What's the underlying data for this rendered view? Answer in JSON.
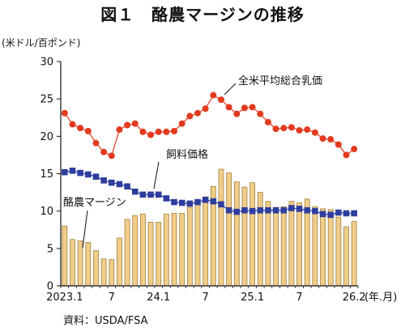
{
  "title": "図１　酪農マージンの推移",
  "unit_label": "(米ドル/百ポンド)",
  "source": "資料：USDA/FSA",
  "chart_data": {
    "type": "bar+line",
    "x_tick_labels": [
      "2023.1",
      "7",
      "24.1",
      "7",
      "25.1",
      "7",
      "26.2"
    ],
    "x_tick_index": [
      0,
      6,
      12,
      18,
      24,
      30,
      37
    ],
    "x_unit": "(年.月)",
    "y_ticks": [
      0,
      5,
      10,
      15,
      20,
      25,
      30
    ],
    "ylim": [
      0,
      30
    ],
    "grid": false,
    "series": [
      {
        "name": "全米平均総合乳価",
        "kind": "line-marker",
        "marker": "circle",
        "color": "#e33a1f",
        "values": [
          23.1,
          21.6,
          21.1,
          20.7,
          19.1,
          17.9,
          17.4,
          20.9,
          21.5,
          21.7,
          20.6,
          20.2,
          20.6,
          20.6,
          20.7,
          21.7,
          22.7,
          23.1,
          23.7,
          25.5,
          24.9,
          23.9,
          23.0,
          23.8,
          23.9,
          23.0,
          21.9,
          21.0,
          21.1,
          21.2,
          20.8,
          20.9,
          20.5,
          19.7,
          19.6,
          18.9,
          17.5,
          18.3
        ]
      },
      {
        "name": "飼料価格",
        "kind": "line-marker",
        "marker": "square",
        "color": "#2e3e9e",
        "values": [
          15.2,
          15.4,
          15.1,
          14.9,
          14.6,
          14.1,
          13.8,
          13.6,
          13.3,
          12.6,
          12.2,
          12.2,
          12.2,
          11.7,
          11.2,
          11.1,
          11.0,
          11.2,
          11.5,
          11.3,
          10.9,
          10.1,
          9.9,
          10.1,
          10.0,
          10.1,
          10.1,
          10.1,
          10.1,
          10.4,
          10.3,
          10.1,
          10.0,
          9.6,
          9.5,
          9.8,
          9.7,
          9.7
        ]
      },
      {
        "name": "酪農マージン",
        "kind": "bar",
        "color": "#f0cd8a",
        "edge": "#a57f3c",
        "values": [
          8.0,
          6.2,
          6.0,
          5.8,
          4.7,
          3.6,
          3.5,
          6.4,
          8.9,
          9.4,
          9.6,
          8.5,
          8.5,
          9.6,
          9.7,
          9.7,
          10.5,
          11.3,
          11.9,
          13.3,
          15.6,
          15.1,
          13.9,
          13.2,
          13.8,
          12.5,
          11.3,
          10.5,
          10.6,
          11.3,
          11.1,
          11.6,
          10.6,
          10.3,
          10.2,
          9.2,
          7.9,
          8.6
        ]
      }
    ]
  }
}
